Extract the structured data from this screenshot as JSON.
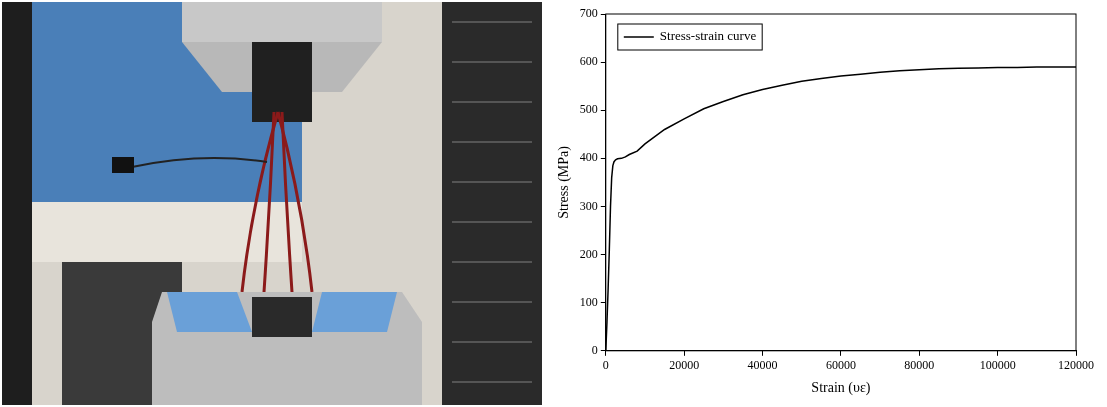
{
  "chart_data": {
    "type": "line",
    "x_label": "Strain (υε)",
    "y_label": "Stress (MPa)",
    "x": [
      0,
      300,
      600,
      900,
      1200,
      1500,
      1800,
      2100,
      2500,
      3000,
      4000,
      5000,
      6000,
      8000,
      10000,
      15000,
      20000,
      25000,
      30000,
      35000,
      40000,
      45000,
      50000,
      55000,
      60000,
      65000,
      70000,
      75000,
      80000,
      85000,
      90000,
      95000,
      100000,
      105000,
      110000,
      115000,
      120000
    ],
    "series": [
      {
        "name": "Stress-strain curve",
        "color": "#000000",
        "values": [
          0,
          60,
          130,
          210,
          300,
          360,
          385,
          393,
          397,
          399,
          400,
          403,
          408,
          415,
          430,
          460,
          482,
          503,
          518,
          532,
          543,
          552,
          560,
          566,
          571,
          575,
          579,
          582,
          584,
          586,
          587,
          588,
          589,
          589,
          590,
          590,
          590
        ]
      }
    ],
    "xlim": [
      0,
      120000
    ],
    "xticks": [
      0,
      20000,
      40000,
      60000,
      80000,
      100000,
      120000
    ],
    "ylim": [
      0,
      700
    ],
    "yticks": [
      0,
      100,
      200,
      300,
      400,
      500,
      600,
      700
    ],
    "grid": false,
    "legend": "top-left"
  }
}
